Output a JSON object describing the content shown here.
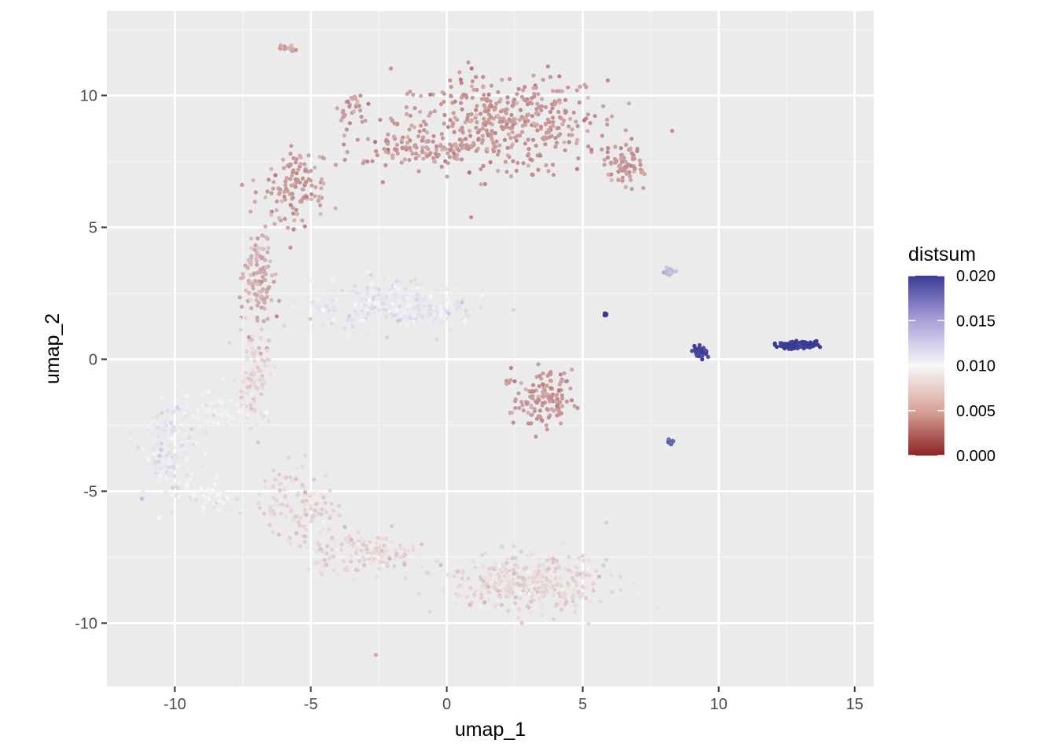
{
  "chart_data": {
    "type": "scatter",
    "title": "",
    "xlabel": "umap_1",
    "ylabel": "umap_2",
    "xlim": [
      -12.5,
      15.7
    ],
    "ylim": [
      -12.4,
      13.2
    ],
    "x_ticks": [
      -10,
      -5,
      0,
      5,
      10,
      15
    ],
    "x_tick_labels": [
      "-10",
      "-5",
      "0",
      "5",
      "10",
      "15"
    ],
    "y_ticks": [
      -10,
      -5,
      0,
      5,
      10
    ],
    "y_tick_labels": [
      "-10",
      "-5",
      "0",
      "5",
      "10"
    ],
    "grid": true,
    "panel_background": "#ebebeb",
    "legend": {
      "title": "distsum",
      "position": "right",
      "range": [
        0.0,
        0.02
      ],
      "breaks": [
        0.0,
        0.005,
        0.01,
        0.015,
        0.02
      ],
      "break_labels": [
        "0.000",
        "0.005",
        "0.010",
        "0.015",
        "0.020"
      ],
      "colors": [
        "#8b2323",
        "#f7f7f7",
        "#3a3a96"
      ]
    },
    "clusters": [
      {
        "cx": 2.0,
        "cy": 9.0,
        "sx": 3.2,
        "sy": 1.5,
        "n": 420,
        "value": 0.0055
      },
      {
        "cx": -1.0,
        "cy": 8.0,
        "sx": 2.4,
        "sy": 0.5,
        "n": 110,
        "value": 0.0055
      },
      {
        "cx": 6.5,
        "cy": 7.4,
        "sx": 0.6,
        "sy": 0.7,
        "n": 70,
        "value": 0.0055
      },
      {
        "cx": -3.5,
        "cy": 9.5,
        "sx": 0.5,
        "sy": 0.6,
        "n": 30,
        "value": 0.0058
      },
      {
        "cx": -5.5,
        "cy": 6.5,
        "sx": 0.9,
        "sy": 1.2,
        "n": 120,
        "value": 0.0058
      },
      {
        "cx": -6.9,
        "cy": 3.0,
        "sx": 0.45,
        "sy": 1.8,
        "n": 120,
        "value": 0.0065
      },
      {
        "cx": -7.1,
        "cy": -0.6,
        "sx": 0.5,
        "sy": 1.6,
        "n": 100,
        "value": 0.0085
      },
      {
        "cx": -2.0,
        "cy": 2.0,
        "sx": 2.6,
        "sy": 0.8,
        "n": 320,
        "value": 0.0108
      },
      {
        "cx": -10.2,
        "cy": -3.5,
        "sx": 0.8,
        "sy": 1.5,
        "n": 170,
        "value": 0.0108
      },
      {
        "cx": -8.4,
        "cy": -2.0,
        "sx": 0.9,
        "sy": 0.6,
        "n": 70,
        "value": 0.0098
      },
      {
        "cx": -8.6,
        "cy": -5.2,
        "sx": 0.7,
        "sy": 0.5,
        "n": 60,
        "value": 0.0102
      },
      {
        "cx": -5.5,
        "cy": -5.5,
        "sx": 1.2,
        "sy": 1.2,
        "n": 120,
        "value": 0.0085
      },
      {
        "cx": -3.0,
        "cy": -7.3,
        "sx": 2.0,
        "sy": 0.6,
        "n": 160,
        "value": 0.0085
      },
      {
        "cx": 3.0,
        "cy": -8.5,
        "sx": 2.5,
        "sy": 0.9,
        "n": 380,
        "value": 0.0085
      },
      {
        "cx": 3.5,
        "cy": -1.5,
        "sx": 0.9,
        "sy": 0.85,
        "n": 140,
        "value": 0.0055
      },
      {
        "cx": 12.9,
        "cy": 0.55,
        "sx": 0.6,
        "sy": 0.1,
        "n": 140,
        "value": 0.02
      },
      {
        "cx": 9.3,
        "cy": 0.3,
        "sx": 0.22,
        "sy": 0.2,
        "n": 40,
        "value": 0.0195
      },
      {
        "cx": 8.2,
        "cy": 3.3,
        "sx": 0.2,
        "sy": 0.15,
        "n": 20,
        "value": 0.0135
      },
      {
        "cx": 8.25,
        "cy": -3.15,
        "sx": 0.1,
        "sy": 0.1,
        "n": 14,
        "value": 0.0175
      },
      {
        "cx": 5.85,
        "cy": 1.7,
        "sx": 0.05,
        "sy": 0.05,
        "n": 6,
        "value": 0.02
      },
      {
        "cx": -5.9,
        "cy": 11.8,
        "sx": 0.3,
        "sy": 0.1,
        "n": 12,
        "value": 0.006
      },
      {
        "cx": -2.6,
        "cy": -11.2,
        "sx": 0.02,
        "sy": 0.02,
        "n": 1,
        "value": 0.006
      }
    ]
  }
}
